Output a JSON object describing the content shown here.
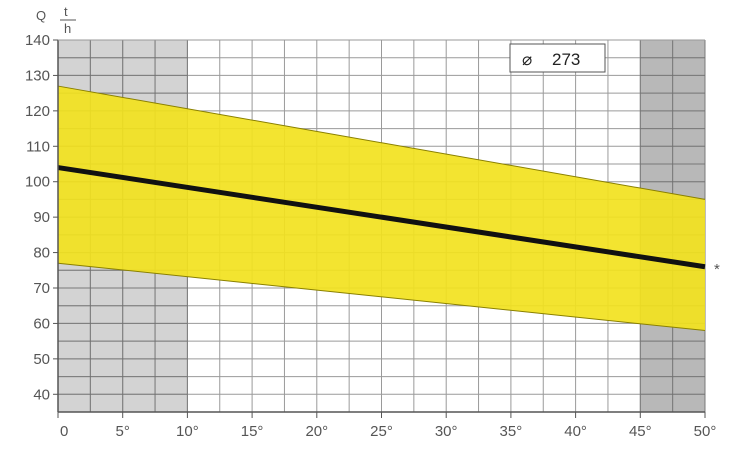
{
  "chart_data": {
    "type": "area",
    "title": "",
    "ylabel_unit": {
      "symbol": "Q",
      "numerator": "t",
      "denominator": "h"
    },
    "badge": {
      "symbol": "⌀",
      "value": "273"
    },
    "x": [
      0,
      50
    ],
    "xlim": [
      0,
      50
    ],
    "ylim": [
      35,
      140
    ],
    "x_ticks": [
      {
        "value": 0,
        "label": "0"
      },
      {
        "value": 5,
        "label": "5°"
      },
      {
        "value": 10,
        "label": "10°"
      },
      {
        "value": 15,
        "label": "15°"
      },
      {
        "value": 20,
        "label": "20°"
      },
      {
        "value": 25,
        "label": "25°"
      },
      {
        "value": 30,
        "label": "30°"
      },
      {
        "value": 35,
        "label": "35°"
      },
      {
        "value": 40,
        "label": "40°"
      },
      {
        "value": 45,
        "label": "45°"
      },
      {
        "value": 50,
        "label": "50°"
      }
    ],
    "y_ticks": [
      40,
      50,
      60,
      70,
      80,
      90,
      100,
      110,
      120,
      130,
      140
    ],
    "series": [
      {
        "role": "center-line",
        "values": [
          104,
          76
        ]
      },
      {
        "role": "band-upper",
        "values": [
          127,
          95
        ]
      },
      {
        "role": "band-lower",
        "values": [
          77,
          58
        ]
      }
    ],
    "shaded_x_ranges": [
      [
        0,
        10
      ],
      [
        45,
        50
      ]
    ],
    "end_marker": "*",
    "grid": true,
    "colors": {
      "band": "#f2e21e",
      "band_edge": "#8a8000",
      "center_line": "#111111",
      "shade": "#8c8c8c",
      "grid": "#9a9a9a",
      "axis": "#555555"
    }
  }
}
